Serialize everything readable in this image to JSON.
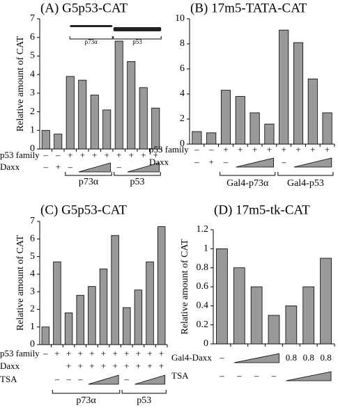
{
  "chart_data": [
    {
      "type": "bar",
      "title": "(A) G5p53-CAT",
      "ylabel": "Relative amount of CAT",
      "values": [
        1.0,
        0.8,
        3.9,
        3.7,
        2.9,
        2.1,
        5.8,
        4.7,
        3.3,
        2.2
      ],
      "color": "#999999",
      "ylim": [
        0,
        7
      ],
      "yticks": [
        0,
        1,
        2,
        3,
        4,
        5,
        6,
        7
      ],
      "rows": [
        {
          "label": "p53 family",
          "signs": [
            "–",
            "–",
            "+",
            "+",
            "+",
            "+",
            "+",
            "+",
            "+",
            "+"
          ]
        },
        {
          "label": "Daxx",
          "signs": [
            "–",
            "+",
            "–",
            null,
            null,
            null,
            "–",
            null,
            null,
            null
          ]
        }
      ],
      "groups": [
        {
          "label": "p73α"
        },
        {
          "label": "p53"
        }
      ],
      "inset_labels": [
        "p73α",
        "p53"
      ]
    },
    {
      "type": "bar",
      "title": "(B) 17m5-TATA-CAT",
      "values": [
        1.0,
        0.9,
        4.3,
        3.8,
        2.5,
        1.6,
        9.1,
        8.1,
        5.2,
        2.5
      ],
      "color": "#999999",
      "ylim": [
        0,
        10
      ],
      "yticks": [
        0,
        2,
        4,
        6,
        8,
        10
      ],
      "rows": [
        {
          "label": "p53 family",
          "signs": [
            "–",
            "–",
            "+",
            "+",
            "+",
            "+",
            "+",
            "+",
            "+",
            "+"
          ]
        },
        {
          "label": "Daxx",
          "signs": [
            "–",
            "+",
            "–",
            null,
            null,
            null,
            "–",
            null,
            null,
            null
          ]
        }
      ],
      "groups": [
        {
          "label": "Gal4-p73α"
        },
        {
          "label": "Gal4-p53"
        }
      ]
    },
    {
      "type": "bar",
      "title": "(C) G5p53-CAT",
      "ylabel": "Relative amount of CAT",
      "values": [
        1.0,
        4.7,
        1.8,
        2.8,
        3.3,
        4.3,
        6.2,
        2.1,
        3.1,
        4.7,
        6.7
      ],
      "color": "#999999",
      "ylim": [
        0,
        7
      ],
      "yticks": [
        0,
        1,
        2,
        3,
        4,
        5,
        6,
        7
      ],
      "rows": [
        {
          "label": "p53 family",
          "signs": [
            "–",
            "+",
            "+",
            "+",
            "+",
            "+",
            "+",
            "+",
            "+",
            "+",
            "+"
          ]
        },
        {
          "label": "Daxx",
          "signs": [
            null,
            null,
            "+",
            "+",
            "+",
            "+",
            "+",
            "+",
            "+",
            "+",
            "+"
          ]
        },
        {
          "label": "TSA",
          "signs": [
            null,
            "–",
            "–",
            "–",
            null,
            null,
            null,
            "–",
            null,
            null,
            null
          ]
        }
      ],
      "groups": [
        {
          "label": "p73α"
        },
        {
          "label": "p53"
        }
      ]
    },
    {
      "type": "bar",
      "title": "(D) 17m5-tk-CAT",
      "ylabel": "Relative amount of CAT",
      "values": [
        1.0,
        0.8,
        0.6,
        0.3,
        0.4,
        0.6,
        0.9
      ],
      "color": "#999999",
      "ylim": [
        0,
        1.2
      ],
      "yticks": [
        0,
        0.2,
        0.4,
        0.6,
        0.8,
        1,
        1.2
      ],
      "rows": [
        {
          "label": "Gal4-Daxx",
          "signs": [
            "–",
            null,
            null,
            null,
            "0.8",
            "0.8",
            "0.8"
          ]
        },
        {
          "label": "TSA",
          "signs": [
            "–",
            "–",
            "–",
            "–",
            null,
            null,
            null
          ]
        }
      ]
    }
  ]
}
